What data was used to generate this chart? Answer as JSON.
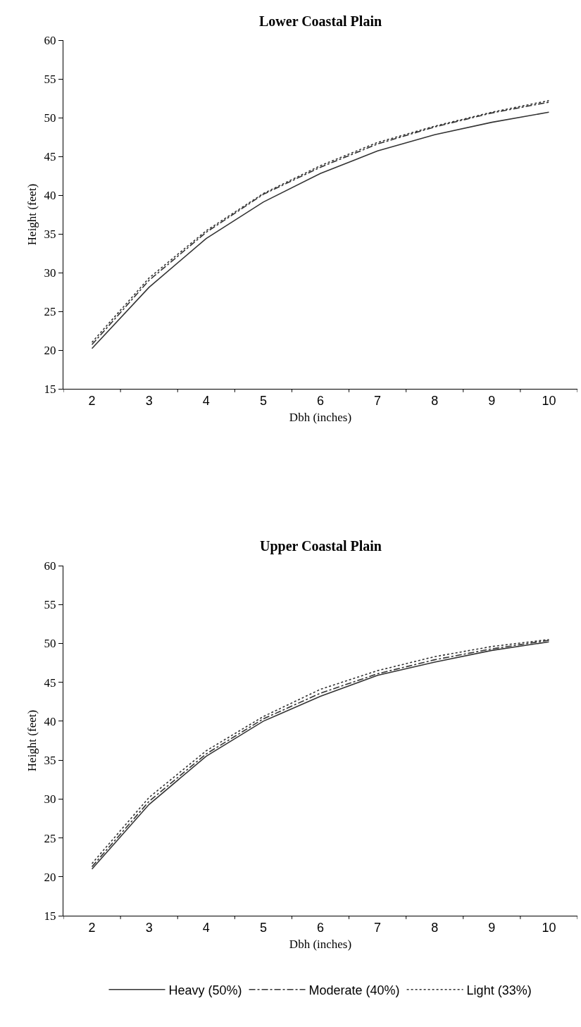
{
  "chart_data": [
    {
      "type": "line",
      "title": "Lower Coastal Plain",
      "xlabel": "Dbh (inches)",
      "ylabel": "Height (feet)",
      "categories": [
        "2",
        "3",
        "4",
        "5",
        "6",
        "7",
        "8",
        "9",
        "10"
      ],
      "ylim": [
        15,
        60
      ],
      "yticks": [
        15,
        20,
        25,
        30,
        35,
        40,
        45,
        50,
        55,
        60
      ],
      "grid": false,
      "legend": "bottom",
      "marker": "none",
      "series": [
        {
          "name": "Heavy (50%)",
          "color": "#333333",
          "line_style": "solid",
          "values": [
            20.2,
            28.1,
            34.4,
            39.1,
            42.8,
            45.7,
            47.8,
            49.4,
            50.7
          ]
        },
        {
          "name": "Moderate (40%)",
          "color": "#333333",
          "line_style": "dashdot",
          "values": [
            20.7,
            29.0,
            35.2,
            40.1,
            43.6,
            46.6,
            48.8,
            50.6,
            52.0
          ]
        },
        {
          "name": "Light (33%)",
          "color": "#333333",
          "line_style": "dotted",
          "values": [
            21.0,
            29.3,
            35.4,
            40.2,
            43.8,
            46.8,
            48.9,
            50.7,
            52.2
          ]
        }
      ]
    },
    {
      "type": "line",
      "title": "Upper Coastal Plain",
      "xlabel": "Dbh (inches)",
      "ylabel": "Height (feet)",
      "categories": [
        "2",
        "3",
        "4",
        "5",
        "6",
        "7",
        "8",
        "9",
        "10"
      ],
      "ylim": [
        15,
        60
      ],
      "yticks": [
        15,
        20,
        25,
        30,
        35,
        40,
        45,
        50,
        55,
        60
      ],
      "grid": false,
      "legend": "bottom",
      "marker": "none",
      "series": [
        {
          "name": "Heavy (50%)",
          "color": "#333333",
          "line_style": "solid",
          "values": [
            21.0,
            29.3,
            35.5,
            40.0,
            43.2,
            45.9,
            47.6,
            49.1,
            50.2
          ]
        },
        {
          "name": "Moderate (40%)",
          "color": "#333333",
          "line_style": "dashdot",
          "values": [
            21.3,
            29.7,
            35.8,
            40.3,
            43.6,
            46.1,
            47.9,
            49.3,
            50.4
          ]
        },
        {
          "name": "Light (33%)",
          "color": "#333333",
          "line_style": "dotted",
          "values": [
            21.7,
            30.2,
            36.2,
            40.6,
            44.1,
            46.5,
            48.3,
            49.6,
            50.5
          ]
        }
      ]
    }
  ]
}
